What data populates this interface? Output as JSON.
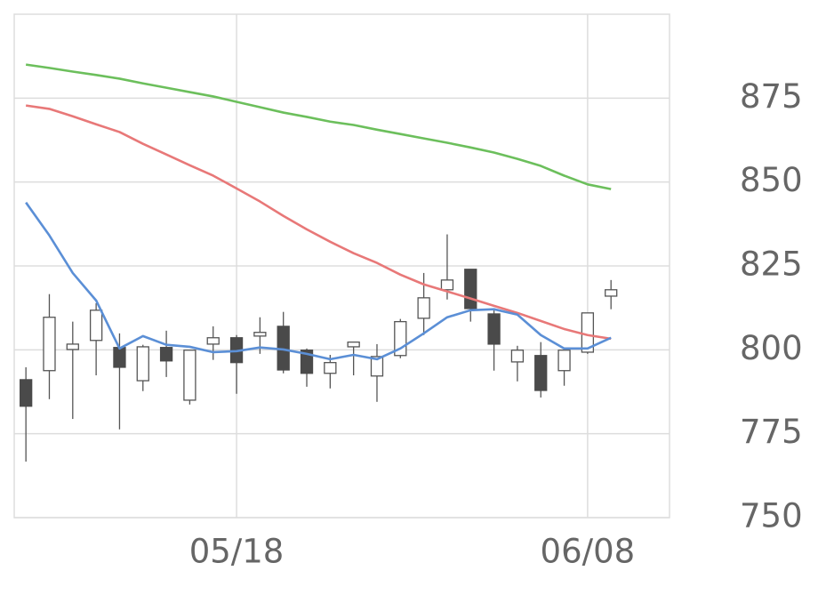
{
  "chart_data": {
    "type": "candlestick",
    "categories": [
      null,
      null,
      null,
      null,
      null,
      null,
      null,
      null,
      null,
      "05/18",
      null,
      null,
      null,
      null,
      null,
      null,
      null,
      null,
      null,
      null,
      null,
      null,
      null,
      null,
      "06/08",
      null
    ],
    "open": [
      791.1,
      793.8,
      800.1,
      802.8,
      800.7,
      790.8,
      800.7,
      785.0,
      801.7,
      803.6,
      804.1,
      807.0,
      799.9,
      793.0,
      800.9,
      792.2,
      798.3,
      809.4,
      817.9,
      824.0,
      810.7,
      796.4,
      798.3,
      793.8,
      799.3,
      816.0
    ],
    "high": [
      794.8,
      816.6,
      808.4,
      813.9,
      804.9,
      801.5,
      805.7,
      799.9,
      807.0,
      804.4,
      809.7,
      811.3,
      800.4,
      798.5,
      802.3,
      801.7,
      809.2,
      822.9,
      834.4,
      824.0,
      811.8,
      801.2,
      802.3,
      799.9,
      811.0,
      820.8
    ],
    "low": [
      766.7,
      785.3,
      779.4,
      792.4,
      776.3,
      787.7,
      791.9,
      783.7,
      797.0,
      786.9,
      798.8,
      793.0,
      789.0,
      788.5,
      792.4,
      784.5,
      797.5,
      804.4,
      815.0,
      808.4,
      793.8,
      790.6,
      785.8,
      789.3,
      798.8,
      812.1
    ],
    "close": [
      783.2,
      809.7,
      801.7,
      811.8,
      794.8,
      800.9,
      796.7,
      799.9,
      803.6,
      796.2,
      805.2,
      794.0,
      793.0,
      796.2,
      802.3,
      798.0,
      808.4,
      815.5,
      820.8,
      812.3,
      801.7,
      799.9,
      787.9,
      799.9,
      811.0,
      817.9
    ],
    "up_color": "#ffffff",
    "down_color": "#4a4a4a",
    "series": [
      {
        "color": "#6cbf5c",
        "values": [
          885.0,
          884.0,
          882.9,
          881.9,
          880.8,
          879.4,
          878.1,
          876.8,
          875.5,
          873.9,
          872.3,
          870.7,
          869.4,
          868.0,
          867.0,
          865.6,
          864.3,
          863.0,
          861.7,
          860.3,
          858.8,
          856.9,
          854.8,
          851.9,
          849.3,
          847.9
        ]
      },
      {
        "color": "#e87878",
        "values": [
          872.8,
          871.8,
          869.6,
          867.2,
          864.9,
          861.4,
          858.2,
          855.0,
          851.9,
          848.1,
          844.2,
          839.9,
          835.9,
          832.2,
          828.8,
          825.9,
          822.4,
          819.5,
          817.4,
          815.3,
          813.1,
          811.0,
          808.6,
          806.2,
          804.4,
          803.3
        ]
      },
      {
        "color": "#5b8fd6",
        "values": [
          843.9,
          834.1,
          822.9,
          814.7,
          800.4,
          804.1,
          801.5,
          800.9,
          799.3,
          799.6,
          800.7,
          800.1,
          798.8,
          797.2,
          798.5,
          797.2,
          800.4,
          804.9,
          809.7,
          811.8,
          812.1,
          810.5,
          804.4,
          800.4,
          800.4,
          803.6
        ]
      }
    ],
    "ylim": [
      750,
      900
    ],
    "yticks": [
      750,
      775,
      800,
      825,
      850,
      875
    ],
    "grid": true
  }
}
